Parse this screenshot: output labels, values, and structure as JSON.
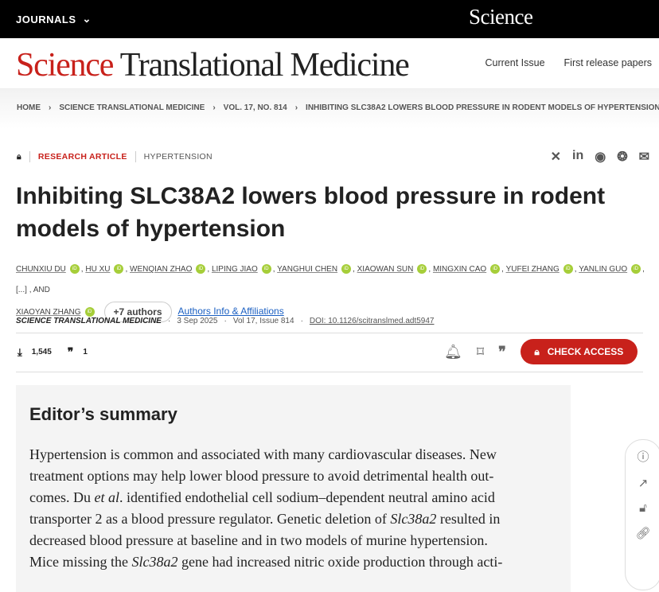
{
  "topbar": {
    "journals": "JOURNALS",
    "brand": "Science"
  },
  "header": {
    "logo_sci": "Science",
    "logo_rest": " Translational Medicine",
    "nav": [
      "Current Issue",
      "First release papers"
    ]
  },
  "breadcrumb": [
    "HOME",
    "SCIENCE TRANSLATIONAL MEDICINE",
    "VOL. 17, NO. 814",
    "INHIBITING SLC38A2 LOWERS BLOOD PRESSURE IN RODENT MODELS OF HYPERTENSION"
  ],
  "article": {
    "type": "RESEARCH ARTICLE",
    "topic": "HYPERTENSION",
    "title": "Inhibiting SLC38A2 lowers blood pressure in rodent models of hypertension",
    "authors": [
      "CHUNXIU DU",
      "HU XU",
      "WENQIAN ZHAO",
      "LIPING JIAO",
      "YANGHUI CHEN",
      "XIAOWAN SUN",
      "MINGXIN CAO",
      "YUFEI ZHANG",
      "YANLIN GUO"
    ],
    "ellipsis": "[...]",
    "and": ", AND",
    "last_author": "XIAOYAN ZHANG",
    "more_authors": "+7 authors",
    "affiliations": "Authors Info & Affiliations",
    "journal": "SCIENCE TRANSLATIONAL MEDICINE",
    "date": "3 Sep 2025",
    "issue": "Vol 17, Issue 814",
    "doi": "DOI: 10.1126/scitranslmed.adt5947",
    "downloads": "1,545",
    "citations": "1",
    "check_access": "CHECK ACCESS"
  },
  "summary": {
    "heading": "Editor’s summary",
    "lines": [
      [
        {
          "t": "Hypertension is common and associated with many cardiovascular diseases. New"
        }
      ],
      [
        {
          "t": "treatment options may help lower blood pressure to avoid detrimental health out-"
        }
      ],
      [
        {
          "t": "comes. Du "
        },
        {
          "t": "et al",
          "i": true
        },
        {
          "t": ". identified endothelial cell sodium–dependent neutral amino acid"
        }
      ],
      [
        {
          "t": "transporter 2 as a blood pressure regulator. Genetic deletion of "
        },
        {
          "t": "Slc38a2",
          "i": true
        },
        {
          "t": " resulted in"
        }
      ],
      [
        {
          "t": "decreased blood pressure at baseline and in two models of murine hypertension."
        }
      ],
      [
        {
          "t": "Mice missing the "
        },
        {
          "t": "Slc38a2",
          "i": true
        },
        {
          "t": " gene had increased nitric oxide production through acti-"
        }
      ]
    ]
  }
}
